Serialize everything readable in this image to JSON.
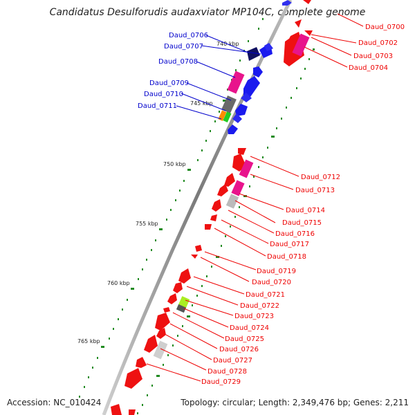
{
  "title": "Candidatus Desulforudis audaxviator MP104C, complete genome",
  "accession": "Accession: NC_010424",
  "topology": "Topology: circular; Length: 2,349,476 bp; Genes: 2,211",
  "colors": {
    "plus_label": "#0000cc",
    "minus_label": "#ee0000",
    "backbone": "#888888",
    "tick": "#228b22"
  },
  "kbp_labels": [
    "740 kbp",
    "745 kbp",
    "750 kbp",
    "755 kbp",
    "760 kbp",
    "765 kbp"
  ],
  "plus_genes": [
    "Daud_0706",
    "Daud_0707",
    "Daud_0708",
    "Daud_0709",
    "Daud_0710",
    "Daud_0711"
  ],
  "minus_genes": [
    "Daud_0700",
    "Daud_0702",
    "Daud_0703",
    "Daud_0704",
    "Daud_0712",
    "Daud_0713",
    "Daud_0714",
    "Daud_0715",
    "Daud_0716",
    "Daud_0717",
    "Daud_0718",
    "Daud_0719",
    "Daud_0720",
    "Daud_0721",
    "Daud_0722",
    "Daud_0723",
    "Daud_0724",
    "Daud_0725",
    "Daud_0726",
    "Daud_0727",
    "Daud_0728",
    "Daud_0729"
  ]
}
